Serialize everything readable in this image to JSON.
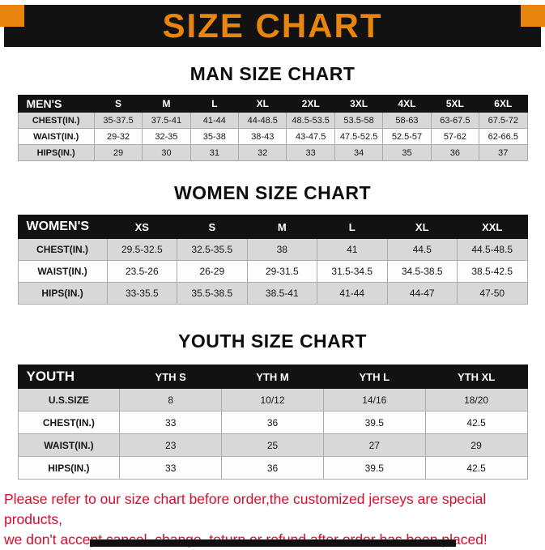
{
  "colors": {
    "accent": "#e8850f",
    "banner-bg": "#121212",
    "stripe": "#d8d8d8",
    "footer-red": "#d40d2e"
  },
  "banner": {
    "title": "SIZE CHART"
  },
  "sections": [
    {
      "title": "MAN SIZE CHART",
      "table": {
        "header": [
          "MEN'S",
          "S",
          "M",
          "L",
          "XL",
          "2XL",
          "3XL",
          "4XL",
          "5XL",
          "6XL"
        ],
        "rows": [
          [
            "CHEST(IN.)",
            "35-37.5",
            "37.5-41",
            "41-44",
            "44-48.5",
            "48.5-53.5",
            "53.5-58",
            "58-63",
            "63-67.5",
            "67.5-72"
          ],
          [
            "WAIST(IN.)",
            "29-32",
            "32-35",
            "35-38",
            "38-43",
            "43-47.5",
            "47.5-52.5",
            "52.5-57",
            "57-62",
            "62-66.5"
          ],
          [
            "HIPS(IN.)",
            "29",
            "30",
            "31",
            "32",
            "33",
            "34",
            "35",
            "36",
            "37"
          ]
        ]
      }
    },
    {
      "title": "WOMEN SIZE CHART",
      "table": {
        "header": [
          "WOMEN'S",
          "XS",
          "S",
          "M",
          "L",
          "XL",
          "XXL"
        ],
        "rows": [
          [
            "CHEST(IN.)",
            "29.5-32.5",
            "32.5-35.5",
            "38",
            "41",
            "44.5",
            "44.5-48.5"
          ],
          [
            "WAIST(IN.)",
            "23.5-26",
            "26-29",
            "29-31.5",
            "31.5-34.5",
            "34.5-38.5",
            "38.5-42.5"
          ],
          [
            "HIPS(IN.)",
            "33-35.5",
            "35.5-38.5",
            "38.5-41",
            "41-44",
            "44-47",
            "47-50"
          ]
        ]
      }
    },
    {
      "title": "YOUTH SIZE CHART",
      "table": {
        "header": [
          "YOUTH",
          "YTH S",
          "YTH M",
          "YTH L",
          "YTH XL"
        ],
        "rows": [
          [
            "U.S.SIZE",
            "8",
            "10/12",
            "14/16",
            "18/20"
          ],
          [
            "CHEST(IN.)",
            "33",
            "36",
            "39.5",
            "42.5"
          ],
          [
            "WAIST(IN.)",
            "23",
            "25",
            "27",
            "29"
          ],
          [
            "HIPS(IN.)",
            "33",
            "36",
            "39.5",
            "42.5"
          ]
        ]
      }
    }
  ],
  "footer": {
    "line1": "Please refer to our size chart before order,the customized jerseys are special products,",
    "line2": "we don't accept cancel, change, teturn or refund after order has been placed!"
  }
}
